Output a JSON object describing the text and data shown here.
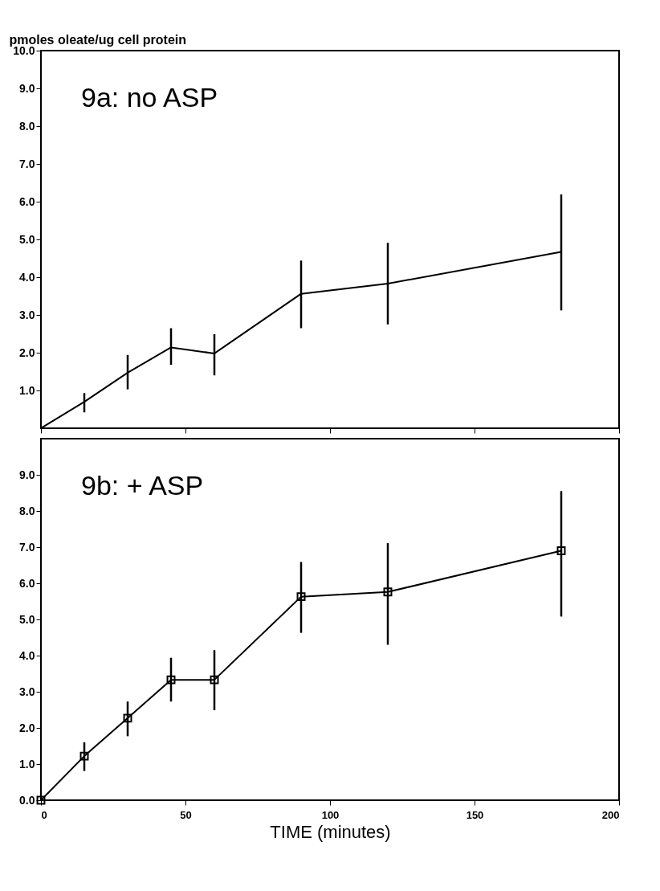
{
  "chart_data": [
    {
      "type": "line",
      "title": "9a: no ASP",
      "ylabel": "pmoles oleate/ug cell protein",
      "x": [
        0,
        15,
        30,
        45,
        60,
        90,
        120,
        180
      ],
      "series": [
        {
          "color": "#000000",
          "values": [
            0,
            0.7,
            1.47,
            2.14,
            1.98,
            3.56,
            3.83,
            4.67
          ],
          "errors": [
            null,
            [
              0.42,
              0.93
            ],
            [
              1.03,
              1.94
            ],
            [
              1.68,
              2.65
            ],
            [
              1.4,
              2.49
            ],
            [
              2.65,
              4.44
            ],
            [
              2.75,
              4.91
            ],
            [
              3.12,
              6.19
            ]
          ]
        }
      ],
      "xlim": [
        0,
        200
      ],
      "xticks": [
        0,
        50,
        100,
        150,
        200
      ],
      "ylim": [
        0,
        10
      ],
      "yticks": [
        {
          "value": 1,
          "label": "1.0"
        },
        {
          "value": 2,
          "label": "2.0"
        },
        {
          "value": 3,
          "label": "3.0"
        },
        {
          "value": 4,
          "label": "4.0"
        },
        {
          "value": 5,
          "label": "5.0"
        },
        {
          "value": 6,
          "label": "6.0"
        },
        {
          "value": 7,
          "label": "7.0"
        },
        {
          "value": 8,
          "label": "8.0"
        },
        {
          "value": 9,
          "label": "9.0"
        },
        {
          "value": 10,
          "label": "10.0"
        }
      ],
      "tick_labels": "y",
      "grid": false,
      "marker": "none",
      "line_style": "solid"
    },
    {
      "type": "line",
      "title": "9b: + ASP",
      "xlabel": "TIME (minutes)",
      "x": [
        0,
        15,
        30,
        45,
        60,
        90,
        120,
        180
      ],
      "series": [
        {
          "color": "#000000",
          "values": [
            0,
            1.22,
            2.27,
            3.33,
            3.33,
            5.63,
            5.76,
            6.9
          ],
          "errors": [
            null,
            [
              0.81,
              1.6
            ],
            [
              1.77,
              2.73
            ],
            [
              2.73,
              3.94
            ],
            [
              2.49,
              4.15
            ],
            [
              4.63,
              6.59
            ],
            [
              4.3,
              7.11
            ],
            [
              5.08,
              8.55
            ]
          ]
        }
      ],
      "xlim": [
        0,
        200
      ],
      "xticks": [
        0,
        50,
        100,
        150,
        200
      ],
      "ylim": [
        0,
        10
      ],
      "yticks": [
        {
          "value": 0,
          "label": "0.0"
        },
        {
          "value": 1,
          "label": "1.0"
        },
        {
          "value": 2,
          "label": "2.0"
        },
        {
          "value": 3,
          "label": "3.0"
        },
        {
          "value": 4,
          "label": "4.0"
        },
        {
          "value": 5,
          "label": "5.0"
        },
        {
          "value": 6,
          "label": "6.0"
        },
        {
          "value": 7,
          "label": "7.0"
        },
        {
          "value": 8,
          "label": "8.0"
        },
        {
          "value": 9,
          "label": "9.0"
        }
      ],
      "grid": false,
      "marker": "square",
      "line_style": "solid"
    }
  ]
}
